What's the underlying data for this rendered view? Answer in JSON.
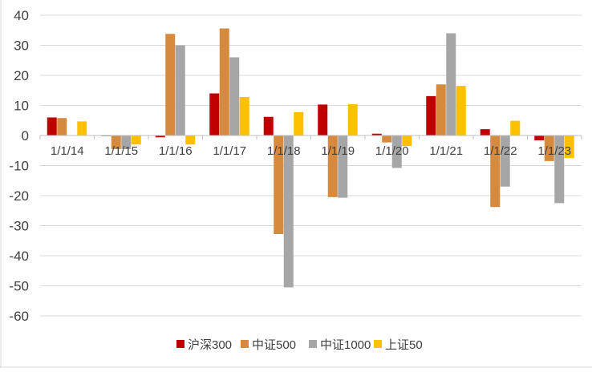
{
  "chart_data": {
    "type": "bar",
    "categories": [
      "1/1/14",
      "1/1/15",
      "1/1/16",
      "1/1/17",
      "1/1/18",
      "1/1/19",
      "1/1/20",
      "1/1/21",
      "1/1/22",
      "1/1/23"
    ],
    "series": [
      {
        "name": "沪深300",
        "color": "#c00000",
        "values": [
          6.0,
          -0.2,
          -0.6,
          14.0,
          6.2,
          10.3,
          0.6,
          13.1,
          2.1,
          -1.6
        ]
      },
      {
        "name": "中证500",
        "color": "#d58a3d",
        "values": [
          5.8,
          -4.5,
          33.8,
          35.6,
          -32.8,
          -20.5,
          -2.3,
          17.0,
          -23.8,
          -8.5
        ]
      },
      {
        "name": "中证1000",
        "color": "#a6a6a6",
        "values": [
          0,
          -4.5,
          30.0,
          26.0,
          -50.5,
          -20.7,
          -10.8,
          34.0,
          -17.0,
          -22.5
        ]
      },
      {
        "name": "上证50",
        "color": "#ffc000",
        "values": [
          4.7,
          -3.0,
          -3.0,
          12.8,
          7.8,
          10.4,
          -3.5,
          16.5,
          4.9,
          -7.5
        ]
      }
    ],
    "ylim": [
      -60,
      40
    ],
    "yticks": [
      "40",
      "30",
      "20",
      "10",
      "0",
      "-10",
      "-20",
      "-30",
      "-40",
      "-50",
      "-60"
    ],
    "grid": true,
    "legend": "bottom",
    "title": "",
    "xlabel": "",
    "ylabel": ""
  }
}
